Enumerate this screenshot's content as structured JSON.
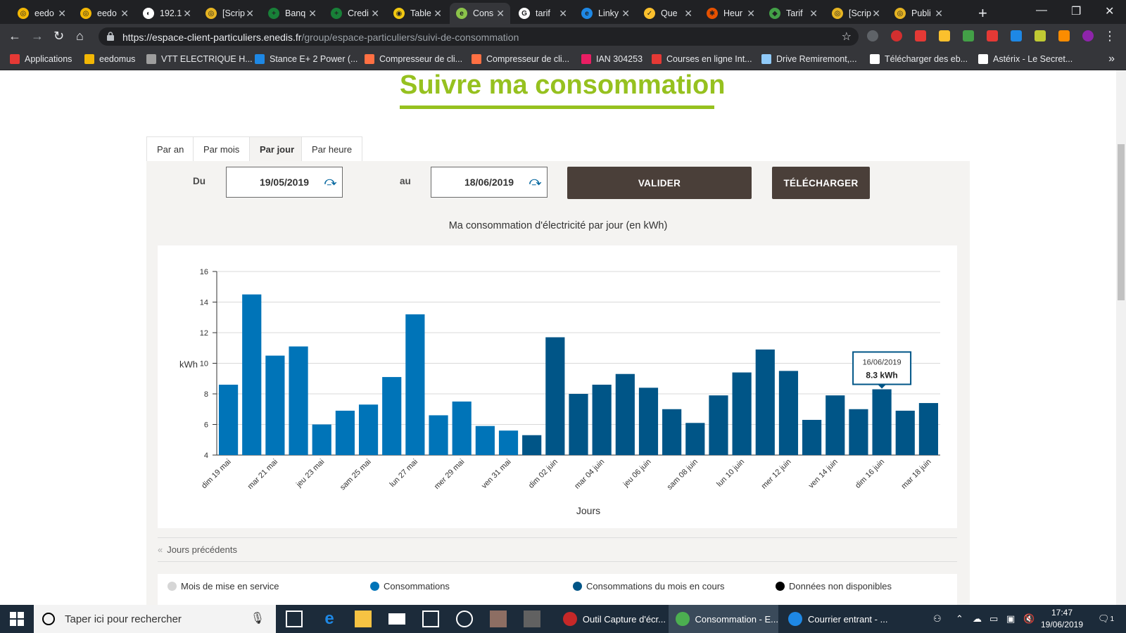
{
  "browser": {
    "tabs": [
      {
        "title": "eedo",
        "color": "#f2b705",
        "glyph": "◎"
      },
      {
        "title": "eedo",
        "color": "#f2b705",
        "glyph": "◎"
      },
      {
        "title": "192.1",
        "color": "#ffffff",
        "glyph": "◐"
      },
      {
        "title": "[Scrip",
        "color": "#e6b422",
        "glyph": "◎"
      },
      {
        "title": "Banq",
        "color": "#188038",
        "glyph": "+"
      },
      {
        "title": "Credi",
        "color": "#188038",
        "glyph": "+"
      },
      {
        "title": "Table",
        "color": "#f2c811",
        "glyph": "◉"
      },
      {
        "title": "Cons",
        "color": "#8bc34a",
        "glyph": "e"
      },
      {
        "title": "tarif",
        "color": "#ffffff",
        "glyph": "G"
      },
      {
        "title": "Linky",
        "color": "#1e88e5",
        "glyph": "e"
      },
      {
        "title": "Que",
        "color": "#fbc02d",
        "glyph": "✓"
      },
      {
        "title": "Heur",
        "color": "#e65100",
        "glyph": "✱"
      },
      {
        "title": "Tarif",
        "color": "#43a047",
        "glyph": "◆"
      },
      {
        "title": "[Scrip",
        "color": "#e6b422",
        "glyph": "◎"
      },
      {
        "title": "Publi",
        "color": "#e6b422",
        "glyph": "◎"
      }
    ],
    "active_tab_index": 7,
    "url_host": "https://espace-client-particuliers.enedis.fr",
    "url_path": "/group/espace-particuliers/suivi-de-consommation",
    "bookmarks": [
      {
        "label": "Applications",
        "color": "#e53935"
      },
      {
        "label": "eedomus",
        "color": "#f2b705"
      },
      {
        "label": "VTT ELECTRIQUE H...",
        "color": "#9e9e9e"
      },
      {
        "label": "Stance E+ 2 Power (...",
        "color": "#1e88e5"
      },
      {
        "label": "Compresseur de cli...",
        "color": "#ff7043"
      },
      {
        "label": "Compresseur de cli...",
        "color": "#ff7043"
      },
      {
        "label": "IAN 304253",
        "color": "#e91e63"
      },
      {
        "label": "Courses en ligne Int...",
        "color": "#e53935"
      },
      {
        "label": "Drive Remiremont,...",
        "color": "#90caf9"
      },
      {
        "label": "Télécharger des eb...",
        "color": "#ffffff"
      },
      {
        "label": "Astérix - Le Secret...",
        "color": "#ffffff"
      }
    ]
  },
  "page": {
    "title": "Suivre ma consommation",
    "view_tabs": [
      "Par an",
      "Par mois",
      "Par jour",
      "Par heure"
    ],
    "active_view": 2,
    "from_label": "Du",
    "from_date": "19/05/2019",
    "to_label": "au",
    "to_date": "18/06/2019",
    "validate_label": "VALIDER",
    "download_label": "TÉLÉCHARGER",
    "chart_heading": "Ma consommation d'électricité par jour (en kWh)",
    "previous_days": "Jours précédents",
    "legend": [
      {
        "label": "Mois de mise en service",
        "color": "#d6d6d6"
      },
      {
        "label": "Consommations",
        "color": "#0074b8"
      },
      {
        "label": "Consommations du mois en cours",
        "color": "#005587"
      },
      {
        "label": "Données non disponibles",
        "color": "#000000"
      }
    ]
  },
  "chart_data": {
    "type": "bar",
    "title": "Ma consommation d'électricité par jour (en kWh)",
    "xlabel": "Jours",
    "ylabel": "kWh",
    "ylim": [
      4,
      16
    ],
    "yticks": [
      4,
      6,
      8,
      10,
      12,
      14,
      16
    ],
    "grid": true,
    "x": [
      "dim 19 mai",
      "lun 20 mai",
      "mar 21 mai",
      "mer 22 mai",
      "jeu 23 mai",
      "ven 24 mai",
      "sam 25 mai",
      "dim 26 mai",
      "lun 27 mai",
      "mar 28 mai",
      "mer 29 mai",
      "jeu 30 mai",
      "ven 31 mai",
      "sam 01 juin",
      "dim 02 juin",
      "lun 03 juin",
      "mar 04 juin",
      "mer 05 juin",
      "jeu 06 juin",
      "ven 07 juin",
      "sam 08 juin",
      "dim 09 juin",
      "lun 10 juin",
      "mar 11 juin",
      "mer 12 juin",
      "jeu 13 juin",
      "ven 14 juin",
      "sam 15 juin",
      "dim 16 juin",
      "lun 17 juin",
      "mar 18 juin"
    ],
    "xtick_labels": [
      "dim 19 mai",
      "mar 21 mai",
      "jeu 23 mai",
      "sam 25 mai",
      "lun 27 mai",
      "mer 29 mai",
      "ven 31 mai",
      "dim 02 juin",
      "mar 04 juin",
      "jeu 06 juin",
      "sam 08 juin",
      "lun 10 juin",
      "mer 12 juin",
      "ven 14 juin",
      "dim 16 juin",
      "mar 18 juin"
    ],
    "values": [
      8.6,
      14.5,
      10.5,
      11.1,
      6.0,
      6.9,
      7.3,
      9.1,
      13.2,
      6.6,
      7.5,
      5.9,
      5.6,
      5.3,
      11.7,
      8.0,
      8.6,
      9.3,
      8.4,
      7.0,
      6.1,
      7.9,
      9.4,
      10.9,
      9.5,
      6.3,
      7.9,
      7.0,
      8.3,
      6.9,
      7.4
    ],
    "series_split": {
      "previous_month_count": 13,
      "previous_month_color": "#0074b8",
      "current_month_color": "#005587"
    },
    "tooltip": {
      "index": 28,
      "date": "16/06/2019",
      "value": "8.3 kWh"
    }
  },
  "taskbar": {
    "search_placeholder": "Taper ici pour rechercher",
    "apps": [
      {
        "label": "Outil Capture d'écr...",
        "color": "#c62828"
      },
      {
        "label": "Consommation - E...",
        "color": "#4caf50"
      },
      {
        "label": "Courrier entrant - ...",
        "color": "#1e88e5"
      }
    ],
    "time": "17:47",
    "date": "19/06/2019",
    "notification_count": "1"
  }
}
